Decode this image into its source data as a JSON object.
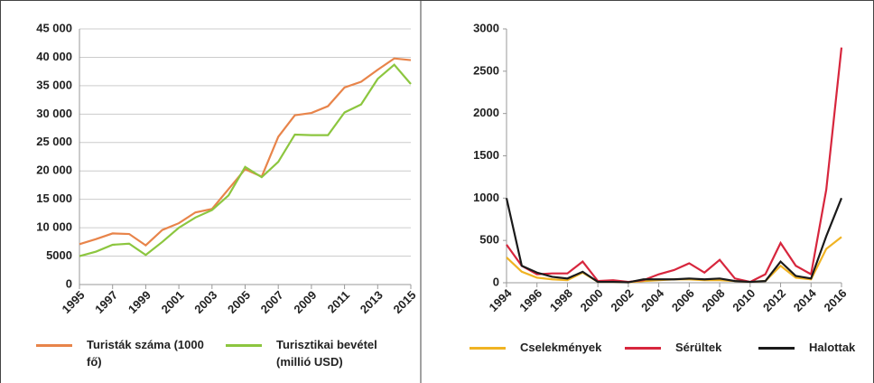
{
  "chart_data": [
    {
      "type": "line",
      "x": [
        1995,
        1996,
        1997,
        1998,
        1999,
        2000,
        2001,
        2002,
        2003,
        2004,
        2005,
        2006,
        2007,
        2008,
        2009,
        2010,
        2011,
        2012,
        2013,
        2014,
        2015
      ],
      "series": [
        {
          "name": "Turisták száma (1000 fő)",
          "color": "#e8844a",
          "values": [
            7100,
            8000,
            9000,
            8900,
            6900,
            9600,
            10800,
            12700,
            13300,
            16800,
            20300,
            19000,
            26000,
            29800,
            30200,
            31400,
            34700,
            35700,
            37800,
            39800,
            39500
          ]
        },
        {
          "name": "Turisztikai bevétel (millió USD)",
          "color": "#8cc63f",
          "values": [
            5000,
            5800,
            7000,
            7200,
            5200,
            7500,
            10000,
            11800,
            13100,
            15700,
            20700,
            18900,
            21600,
            26400,
            26300,
            26300,
            30300,
            31700,
            36200,
            38700,
            35300
          ]
        }
      ],
      "xlim": [
        1995,
        2015
      ],
      "xticks": [
        1995,
        1997,
        1999,
        2001,
        2003,
        2005,
        2007,
        2009,
        2011,
        2013,
        2015
      ],
      "ylim": [
        0,
        45000
      ],
      "yticks": [
        0,
        {
          "value": 5000,
          "label": "5000"
        },
        {
          "value": 10000,
          "label": "10 000"
        },
        {
          "value": 15000,
          "label": "15 000"
        },
        {
          "value": 20000,
          "label": "20 000"
        },
        {
          "value": 25000,
          "label": "25 000"
        },
        {
          "value": 30000,
          "label": "30 000"
        },
        {
          "value": 35000,
          "label": "35 000"
        },
        {
          "value": 40000,
          "label": "40 000"
        },
        {
          "value": 45000,
          "label": "45 000"
        }
      ],
      "grid": true
    },
    {
      "type": "line",
      "x": [
        1994,
        1995,
        1996,
        1997,
        1998,
        1999,
        2000,
        2001,
        2002,
        2003,
        2004,
        2005,
        2006,
        2007,
        2008,
        2009,
        2010,
        2011,
        2012,
        2013,
        2014,
        2015,
        2016
      ],
      "series": [
        {
          "name": "Cselekmények",
          "color": "#f0b323",
          "values": [
            300,
            130,
            60,
            40,
            30,
            120,
            10,
            10,
            5,
            20,
            30,
            40,
            40,
            30,
            30,
            20,
            10,
            20,
            200,
            60,
            40,
            400,
            540
          ]
        },
        {
          "name": "Sérültek",
          "color": "#d7263d",
          "values": [
            450,
            200,
            100,
            110,
            110,
            250,
            20,
            30,
            10,
            30,
            100,
            150,
            230,
            120,
            270,
            50,
            10,
            100,
            470,
            200,
            100,
            1100,
            2780
          ]
        },
        {
          "name": "Halottak",
          "color": "#1a1a1a",
          "values": [
            1000,
            200,
            120,
            70,
            50,
            130,
            10,
            10,
            5,
            40,
            40,
            40,
            50,
            40,
            50,
            20,
            10,
            20,
            250,
            80,
            50,
            550,
            1000
          ]
        }
      ],
      "xlim": [
        1994,
        2016
      ],
      "xticks": [
        1994,
        1996,
        1998,
        2000,
        2002,
        2004,
        2006,
        2008,
        2010,
        2012,
        2014,
        2016
      ],
      "ylim": [
        0,
        3000
      ],
      "yticks": [
        0,
        500,
        1000,
        1500,
        2000,
        2500,
        3000
      ],
      "grid": false
    }
  ]
}
